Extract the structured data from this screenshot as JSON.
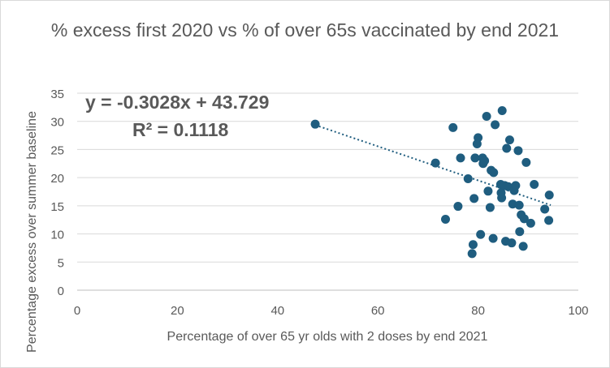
{
  "chart_data": {
    "type": "scatter",
    "title": "% excess first 2020 vs % of over 65s vaccinated by end 2021",
    "xlabel": "Percentage of over 65 yr olds with 2 doses by end 2021",
    "ylabel": "Percentage excess over summer baseline",
    "xlim": [
      0,
      100
    ],
    "ylim": [
      0,
      35
    ],
    "x_ticks": [
      0,
      20,
      40,
      60,
      80,
      100
    ],
    "y_ticks": [
      0,
      5,
      10,
      15,
      20,
      25,
      30,
      35
    ],
    "grid": "horizontal",
    "legend": "none",
    "series_color": "#1f5d7f",
    "trendline": {
      "type": "linear",
      "slope": -0.3028,
      "intercept": 43.729,
      "x_range": [
        47.5,
        94.5
      ],
      "equation_label": "y = -0.3028x + 43.729",
      "r_squared_label": "R² = 0.1118"
    },
    "points": [
      {
        "x": 47.5,
        "y": 29.5
      },
      {
        "x": 71.5,
        "y": 22.6
      },
      {
        "x": 73.5,
        "y": 12.6
      },
      {
        "x": 75.0,
        "y": 28.9
      },
      {
        "x": 76.0,
        "y": 14.9
      },
      {
        "x": 76.5,
        "y": 23.5
      },
      {
        "x": 78.0,
        "y": 19.8
      },
      {
        "x": 78.8,
        "y": 6.5
      },
      {
        "x": 79.0,
        "y": 8.1
      },
      {
        "x": 79.2,
        "y": 16.3
      },
      {
        "x": 79.4,
        "y": 23.5
      },
      {
        "x": 79.8,
        "y": 26.0
      },
      {
        "x": 80.0,
        "y": 27.1
      },
      {
        "x": 80.5,
        "y": 9.9
      },
      {
        "x": 80.9,
        "y": 23.5
      },
      {
        "x": 81.0,
        "y": 22.5
      },
      {
        "x": 81.3,
        "y": 23.0
      },
      {
        "x": 81.7,
        "y": 30.9
      },
      {
        "x": 82.0,
        "y": 17.6
      },
      {
        "x": 82.4,
        "y": 14.7
      },
      {
        "x": 82.6,
        "y": 21.3
      },
      {
        "x": 83.0,
        "y": 9.2
      },
      {
        "x": 83.1,
        "y": 20.9
      },
      {
        "x": 83.4,
        "y": 29.4
      },
      {
        "x": 84.5,
        "y": 18.8
      },
      {
        "x": 84.6,
        "y": 17.3
      },
      {
        "x": 84.7,
        "y": 16.4
      },
      {
        "x": 84.8,
        "y": 31.9
      },
      {
        "x": 85.3,
        "y": 18.6
      },
      {
        "x": 85.5,
        "y": 8.7
      },
      {
        "x": 85.7,
        "y": 25.2
      },
      {
        "x": 86.0,
        "y": 18.4
      },
      {
        "x": 86.3,
        "y": 26.7
      },
      {
        "x": 86.7,
        "y": 8.4
      },
      {
        "x": 86.9,
        "y": 15.3
      },
      {
        "x": 87.2,
        "y": 17.7
      },
      {
        "x": 87.5,
        "y": 18.6
      },
      {
        "x": 88.0,
        "y": 24.8
      },
      {
        "x": 88.2,
        "y": 15.1
      },
      {
        "x": 88.3,
        "y": 10.4
      },
      {
        "x": 88.6,
        "y": 13.4
      },
      {
        "x": 89.0,
        "y": 7.8
      },
      {
        "x": 89.2,
        "y": 12.7
      },
      {
        "x": 89.6,
        "y": 22.7
      },
      {
        "x": 90.5,
        "y": 11.9
      },
      {
        "x": 91.2,
        "y": 18.8
      },
      {
        "x": 93.3,
        "y": 14.4
      },
      {
        "x": 94.1,
        "y": 12.4
      },
      {
        "x": 94.2,
        "y": 16.9
      }
    ]
  }
}
